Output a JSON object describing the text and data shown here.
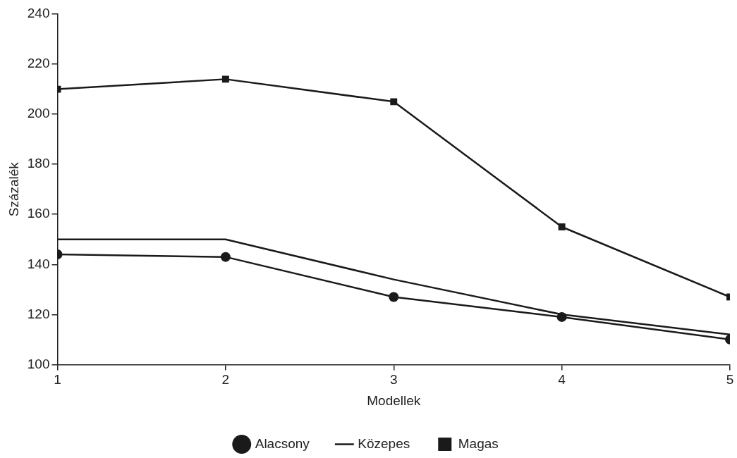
{
  "chart_data": {
    "type": "line",
    "xlabel": "Modellek",
    "ylabel": "Százalék",
    "x": [
      1,
      2,
      3,
      4,
      5
    ],
    "xlim": [
      1,
      5
    ],
    "xticks": [
      1,
      2,
      3,
      4,
      5
    ],
    "ylim": [
      100,
      240
    ],
    "yticks": [
      100,
      120,
      140,
      160,
      180,
      200,
      220,
      240
    ],
    "grid": false,
    "legend": "bottom",
    "line_style": "solid",
    "series": [
      {
        "name": "Alacsony",
        "color": "#1a1a1a",
        "marker": "circle",
        "values": [
          144,
          143,
          127,
          119,
          110
        ]
      },
      {
        "name": "Közepes",
        "color": "#1a1a1a",
        "marker": "none",
        "values": [
          150,
          150,
          134,
          120,
          112
        ]
      },
      {
        "name": "Magas",
        "color": "#1a1a1a",
        "marker": "square",
        "values": [
          210,
          214,
          205,
          155,
          127
        ]
      }
    ]
  }
}
